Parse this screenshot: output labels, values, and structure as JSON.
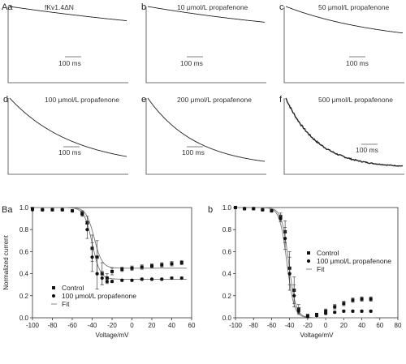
{
  "chart_data": [
    {
      "type": "line",
      "panel": "Aa",
      "title": "fKv1.4ΔN",
      "scale_bar": "100 ms",
      "tau": 2.6,
      "ss": 0.36,
      "noise": 0.0
    },
    {
      "type": "line",
      "panel": "b",
      "title": "10 μmol/L propafenone",
      "scale_bar": "100 ms",
      "tau": 1.9,
      "ss": 0.45,
      "noise": 0.0
    },
    {
      "type": "line",
      "panel": "c",
      "title": "50 μmol/L propafenone",
      "scale_bar": "100 ms",
      "tau": 0.85,
      "ss": 0.45,
      "noise": 0.0
    },
    {
      "type": "line",
      "panel": "d",
      "title": "100 μmol/L propafenone",
      "scale_bar": "100 ms",
      "tau": 0.55,
      "ss": 0.0,
      "noise": 0.0
    },
    {
      "type": "line",
      "panel": "e",
      "title": "200 μmol/L propafenone",
      "scale_bar": "100 ms",
      "tau": 0.42,
      "ss": 0.0,
      "noise": 0.0
    },
    {
      "type": "line",
      "panel": "f",
      "title": "500 μmol/L propafenone",
      "scale_bar": "100 ms",
      "tau": 0.27,
      "ss": 0.0,
      "noise": 0.03
    },
    {
      "type": "scatter",
      "panel": "Ba",
      "xlabel": "Voltage/mV",
      "ylabel": "Normalized current",
      "xlim": [
        -100,
        60
      ],
      "ylim": [
        0,
        1.0
      ],
      "xticks": [
        -100,
        -80,
        -60,
        -40,
        -20,
        0,
        20,
        40,
        60
      ],
      "yticks": [
        0,
        0.2,
        0.4,
        0.6,
        0.8,
        1.0
      ],
      "legend_position": "bottom-left",
      "series": [
        {
          "name": "Control",
          "marker": "square",
          "x": [
            -100,
            -90,
            -80,
            -70,
            -60,
            -50,
            -45,
            -40,
            -35,
            -30,
            -25,
            -20,
            -10,
            0,
            10,
            20,
            30,
            40,
            50
          ],
          "y": [
            0.99,
            0.98,
            0.98,
            0.98,
            0.97,
            0.95,
            0.86,
            0.63,
            0.55,
            0.4,
            0.36,
            0.42,
            0.44,
            0.45,
            0.46,
            0.47,
            0.48,
            0.49,
            0.5
          ],
          "err": [
            0,
            0,
            0,
            0,
            0.01,
            0.02,
            0.06,
            0.12,
            0.15,
            0.1,
            0.04,
            0.03,
            0.02,
            0.02,
            0.02,
            0.02,
            0.02,
            0.02,
            0.02
          ]
        },
        {
          "name": "100 μmol/L propafenone",
          "marker": "circle",
          "x": [
            -100,
            -90,
            -80,
            -70,
            -60,
            -50,
            -45,
            -40,
            -35,
            -30,
            -25,
            -20,
            -10,
            0,
            10,
            20,
            30,
            40,
            50
          ],
          "y": [
            0.98,
            0.98,
            0.98,
            0.98,
            0.97,
            0.94,
            0.8,
            0.55,
            0.4,
            0.36,
            0.33,
            0.33,
            0.34,
            0.34,
            0.35,
            0.35,
            0.35,
            0.36,
            0.36
          ],
          "err": [
            0,
            0,
            0,
            0,
            0.01,
            0.02,
            0.08,
            0.13,
            0.14,
            0.06,
            0.02,
            0.01,
            0.01,
            0.01,
            0.01,
            0.01,
            0.01,
            0.01,
            0.01
          ]
        },
        {
          "name": "Fit",
          "kind": "fit",
          "curves": [
            {
              "top": 1.0,
              "bottom": 0.45,
              "v50": -38,
              "k": 4
            },
            {
              "top": 1.0,
              "bottom": 0.35,
              "v50": -40,
              "k": 4
            }
          ]
        }
      ]
    },
    {
      "type": "scatter",
      "panel": "b",
      "xlabel": "Voltage/mV",
      "ylabel": "",
      "xlim": [
        -100,
        80
      ],
      "ylim": [
        0,
        1.0
      ],
      "xticks": [
        -100,
        -80,
        -60,
        -40,
        -20,
        0,
        20,
        40,
        60,
        80
      ],
      "yticks": [
        0,
        0.2,
        0.4,
        0.6,
        0.8,
        1.0
      ],
      "legend_position": "center-right",
      "series": [
        {
          "name": "Control",
          "marker": "square",
          "x": [
            -100,
            -90,
            -80,
            -70,
            -60,
            -50,
            -45,
            -40,
            -35,
            -30,
            -20,
            -10,
            0,
            10,
            20,
            30,
            40,
            50
          ],
          "y": [
            1.0,
            0.99,
            0.99,
            0.98,
            0.97,
            0.92,
            0.78,
            0.45,
            0.25,
            0.08,
            0.02,
            0.03,
            0.06,
            0.1,
            0.13,
            0.16,
            0.17,
            0.17
          ],
          "err": [
            0,
            0,
            0,
            0,
            0.01,
            0.03,
            0.1,
            0.15,
            0.12,
            0.04,
            0.01,
            0.01,
            0.02,
            0.02,
            0.02,
            0.02,
            0.02,
            0.02
          ]
        },
        {
          "name": "100 μmol/L propafenone",
          "marker": "circle",
          "x": [
            -100,
            -90,
            -80,
            -70,
            -60,
            -50,
            -45,
            -40,
            -35,
            -30,
            -20,
            -10,
            0,
            10,
            20,
            30,
            40,
            50
          ],
          "y": [
            1.0,
            0.99,
            0.99,
            0.98,
            0.97,
            0.9,
            0.72,
            0.4,
            0.2,
            0.06,
            0.01,
            0.02,
            0.04,
            0.05,
            0.06,
            0.06,
            0.06,
            0.06
          ],
          "err": [
            0,
            0,
            0,
            0,
            0.01,
            0.03,
            0.1,
            0.15,
            0.1,
            0.03,
            0.01,
            0.01,
            0.01,
            0.01,
            0.01,
            0.01,
            0.01,
            0.01
          ]
        },
        {
          "name": "Fit",
          "kind": "fit",
          "curves": [
            {
              "top": 1.0,
              "bottom": 0.0,
              "v50": -41,
              "k": 4
            },
            {
              "top": 1.0,
              "bottom": 0.0,
              "v50": -43,
              "k": 4
            }
          ]
        }
      ]
    }
  ]
}
